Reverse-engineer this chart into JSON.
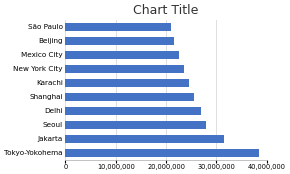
{
  "title": "Chart Title",
  "categories": [
    "Tokyo-Yokohema",
    "Jakarta",
    "Seoul",
    "Delhi",
    "Shanghai",
    "Karachi",
    "New York City",
    "Mexico City",
    "Beijing",
    "São Paulo"
  ],
  "values": [
    38500000,
    31500000,
    28000000,
    27000000,
    25500000,
    24500000,
    23500000,
    22500000,
    21500000,
    21000000
  ],
  "bar_color": "#4472C4",
  "xlim": [
    0,
    40000000
  ],
  "xticks": [
    0,
    10000000,
    20000000,
    30000000,
    40000000
  ],
  "background_color": "#ffffff",
  "grid_color": "#d9d9d9",
  "plot_bg_color": "#ffffff",
  "title_fontsize": 9,
  "label_fontsize": 5.2,
  "tick_fontsize": 4.8
}
